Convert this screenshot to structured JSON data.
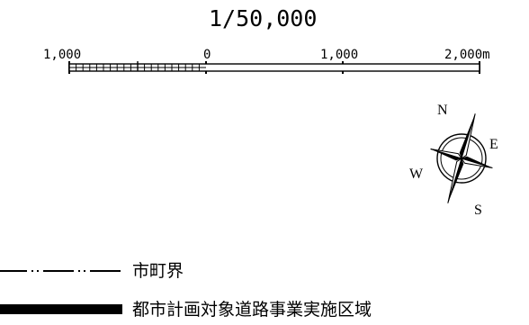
{
  "scale": {
    "ratio": "1/50,000",
    "tick_labels": [
      "1,000",
      "0",
      "1,000",
      "2,000m"
    ]
  },
  "north_arrow": {
    "icon": "compass-rose-icon",
    "labels": {
      "north": "N",
      "east": "E",
      "south": "S",
      "west": "W"
    }
  },
  "legend": {
    "items": [
      {
        "icon": "dash-dot-dot-line-icon",
        "label": "市町界"
      },
      {
        "icon": "thick-black-bar-icon",
        "label": "都市計画対象道路事業実施区域"
      }
    ]
  },
  "colors": {
    "ink": "#000000",
    "background": "#ffffff"
  }
}
